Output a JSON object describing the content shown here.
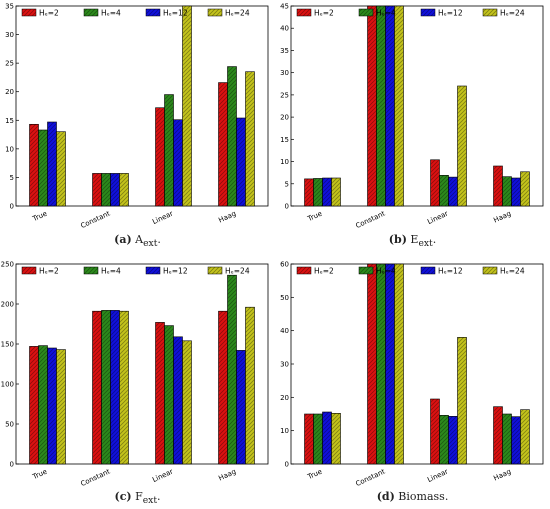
{
  "legend_labels": [
    "Hₑ=2",
    "Hₑ=4",
    "Hₑ=12",
    "Hₑ=24"
  ],
  "colors": [
    "#dd1111",
    "#2c8a1c",
    "#1010dd",
    "#c4c41c"
  ],
  "hatch_color": "#7a4a20",
  "panels": [
    {
      "letter": "(a)",
      "caption_main": "A",
      "caption_sub": "ext",
      "caption_end": "."
    },
    {
      "letter": "(b)",
      "caption_main": "E",
      "caption_sub": "ext",
      "caption_end": "."
    },
    {
      "letter": "(c)",
      "caption_main": "F",
      "caption_sub": "ext",
      "caption_end": "."
    },
    {
      "letter": "(d)",
      "caption_main": "Biomass",
      "caption_sub": "",
      "caption_end": "."
    }
  ],
  "chart_data": [
    {
      "type": "bar",
      "categories": [
        "True",
        "Constant",
        "Linear",
        "Haag"
      ],
      "ylim": [
        0,
        35
      ],
      "yticks": [
        0,
        5,
        10,
        15,
        20,
        25,
        30,
        35
      ],
      "grid": false,
      "legend_position": "top",
      "series": [
        {
          "name": "Hₑ=2",
          "values": [
            14.3,
            5.7,
            17.2,
            21.6
          ]
        },
        {
          "name": "Hₑ=4",
          "values": [
            13.3,
            5.7,
            19.5,
            24.4
          ]
        },
        {
          "name": "Hₑ=12",
          "values": [
            14.7,
            5.7,
            15.1,
            15.4
          ]
        },
        {
          "name": "Hₑ=24",
          "values": [
            13.0,
            5.7,
            35.0,
            23.5
          ]
        }
      ]
    },
    {
      "type": "bar",
      "categories": [
        "True",
        "Constant",
        "Linear",
        "Haag"
      ],
      "ylim": [
        0,
        45
      ],
      "yticks": [
        0,
        5,
        10,
        15,
        20,
        25,
        30,
        35,
        40,
        45
      ],
      "grid": false,
      "legend_position": "top",
      "series": [
        {
          "name": "Hₑ=2",
          "values": [
            6.1,
            45,
            10.4,
            9.0
          ]
        },
        {
          "name": "Hₑ=4",
          "values": [
            6.2,
            45,
            6.9,
            6.6
          ]
        },
        {
          "name": "Hₑ=12",
          "values": [
            6.3,
            45,
            6.5,
            6.3
          ]
        },
        {
          "name": "Hₑ=24",
          "values": [
            6.3,
            45,
            27.0,
            7.7
          ]
        }
      ]
    },
    {
      "type": "bar",
      "categories": [
        "True",
        "Constant",
        "Linear",
        "Haag"
      ],
      "ylim": [
        0,
        250
      ],
      "yticks": [
        0,
        50,
        100,
        150,
        200,
        250
      ],
      "grid": false,
      "legend_position": "top",
      "series": [
        {
          "name": "Hₑ=2",
          "values": [
            147,
            191,
            177,
            191
          ]
        },
        {
          "name": "Hₑ=4",
          "values": [
            148,
            192,
            173,
            236
          ]
        },
        {
          "name": "Hₑ=12",
          "values": [
            145,
            192,
            159,
            142
          ]
        },
        {
          "name": "Hₑ=24",
          "values": [
            143,
            191,
            154,
            196
          ]
        }
      ]
    },
    {
      "type": "bar",
      "categories": [
        "True",
        "Constant",
        "Linear",
        "Haag"
      ],
      "ylim": [
        0,
        60
      ],
      "yticks": [
        0,
        10,
        20,
        30,
        40,
        50,
        60
      ],
      "grid": false,
      "legend_position": "top",
      "series": [
        {
          "name": "Hₑ=2",
          "values": [
            15.0,
            60,
            19.5,
            17.2
          ]
        },
        {
          "name": "Hₑ=4",
          "values": [
            15.0,
            60,
            14.6,
            15.0
          ]
        },
        {
          "name": "Hₑ=12",
          "values": [
            15.6,
            60,
            14.3,
            14.2
          ]
        },
        {
          "name": "Hₑ=24",
          "values": [
            15.2,
            60,
            38.0,
            16.3
          ]
        }
      ]
    }
  ]
}
